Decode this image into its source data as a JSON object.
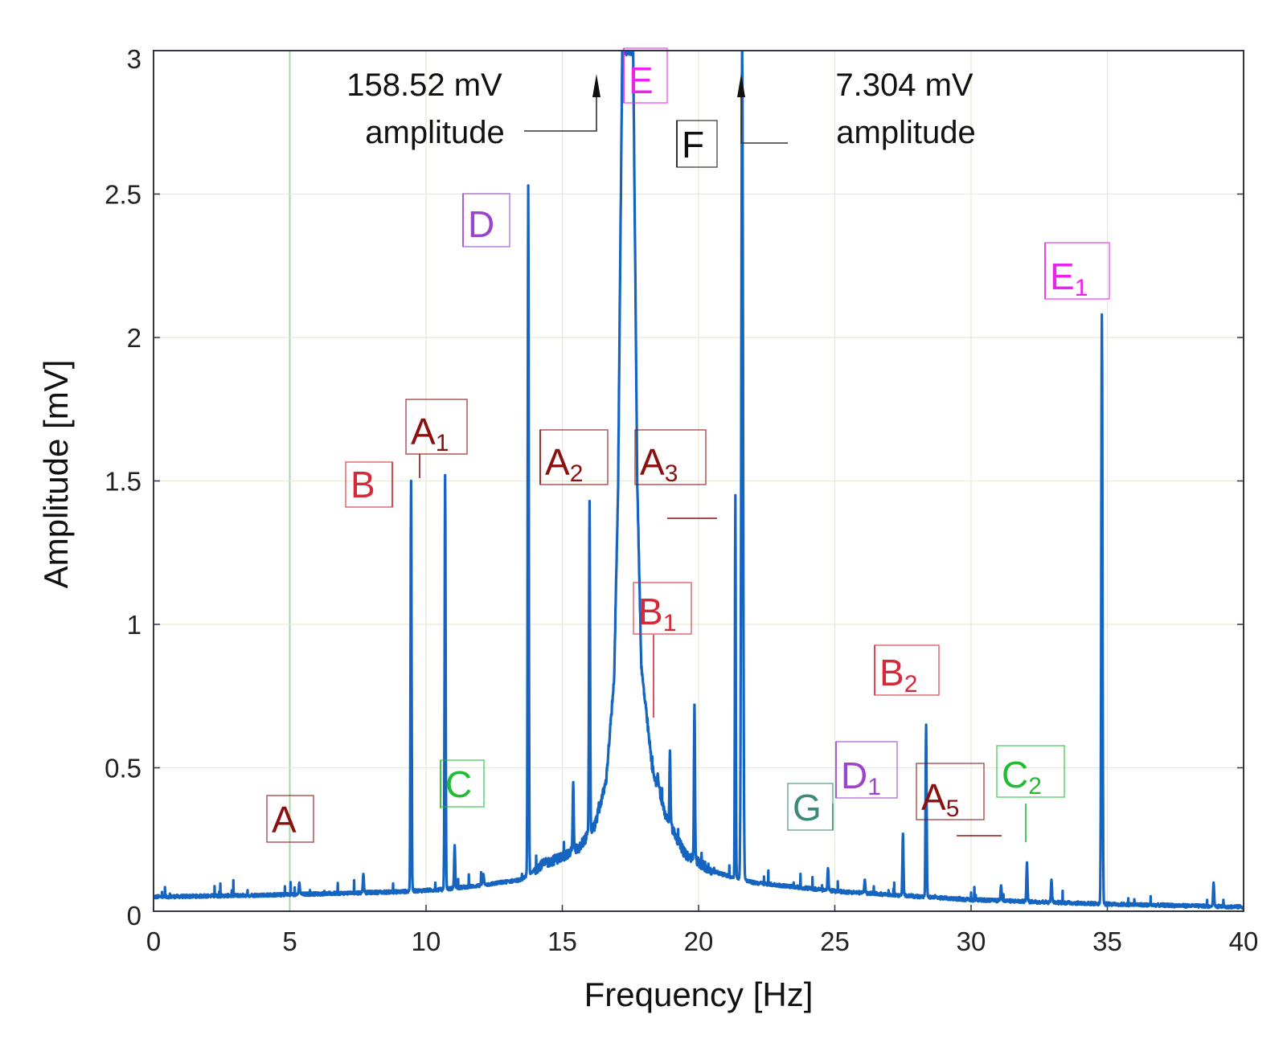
{
  "chart_data": {
    "type": "line",
    "xlabel": "Frequency [Hz]",
    "ylabel": "Amplitude [mV]",
    "xlim": [
      0,
      40
    ],
    "ylim": [
      0,
      3
    ],
    "grid": true,
    "x_ticks": [
      0,
      5,
      10,
      15,
      20,
      25,
      30,
      35,
      40
    ],
    "y_ticks": [
      0,
      0.5,
      1,
      1.5,
      2,
      2.5,
      3
    ],
    "y_tick_labels": [
      "0",
      "0.5",
      "1",
      "1.5",
      "2",
      "2.5",
      "3"
    ],
    "baseline": [
      {
        "x": 0,
        "y": 0.05
      },
      {
        "x": 5,
        "y": 0.058
      },
      {
        "x": 9,
        "y": 0.068
      },
      {
        "x": 10.5,
        "y": 0.075
      },
      {
        "x": 12,
        "y": 0.09
      },
      {
        "x": 13.5,
        "y": 0.11
      },
      {
        "x": 14.2,
        "y": 0.16
      },
      {
        "x": 15,
        "y": 0.19
      },
      {
        "x": 15.6,
        "y": 0.22
      },
      {
        "x": 16.2,
        "y": 0.3
      },
      {
        "x": 16.6,
        "y": 0.45
      },
      {
        "x": 16.9,
        "y": 0.8
      },
      {
        "x": 17.05,
        "y": 1.5
      },
      {
        "x": 17.2,
        "y": 3.0
      },
      {
        "x": 17.6,
        "y": 3.0
      },
      {
        "x": 17.75,
        "y": 1.5
      },
      {
        "x": 17.9,
        "y": 0.85
      },
      {
        "x": 18.3,
        "y": 0.5
      },
      {
        "x": 18.8,
        "y": 0.33
      },
      {
        "x": 19.5,
        "y": 0.2
      },
      {
        "x": 20.5,
        "y": 0.14
      },
      {
        "x": 21.2,
        "y": 0.12
      },
      {
        "x": 22,
        "y": 0.1
      },
      {
        "x": 25,
        "y": 0.07
      },
      {
        "x": 30,
        "y": 0.04
      },
      {
        "x": 35,
        "y": 0.025
      },
      {
        "x": 40,
        "y": 0.015
      }
    ],
    "peaks": [
      {
        "x": 5.35,
        "y": 0.1,
        "w": 0.06
      },
      {
        "x": 7.7,
        "y": 0.13,
        "w": 0.06
      },
      {
        "x": 9.45,
        "y": 1.5,
        "w": 0.06
      },
      {
        "x": 10.7,
        "y": 1.52,
        "w": 0.06
      },
      {
        "x": 11.05,
        "y": 0.23,
        "w": 0.06
      },
      {
        "x": 12.1,
        "y": 0.13,
        "w": 0.08
      },
      {
        "x": 13.75,
        "y": 2.53,
        "w": 0.06
      },
      {
        "x": 15.4,
        "y": 0.45,
        "w": 0.06
      },
      {
        "x": 16.0,
        "y": 1.43,
        "w": 0.06
      },
      {
        "x": 18.5,
        "y": 0.48,
        "w": 0.06
      },
      {
        "x": 18.95,
        "y": 0.56,
        "w": 0.06
      },
      {
        "x": 19.85,
        "y": 0.72,
        "w": 0.06
      },
      {
        "x": 21.35,
        "y": 1.45,
        "w": 0.05
      },
      {
        "x": 21.6,
        "y": 3.0,
        "w": 0.1
      },
      {
        "x": 24.75,
        "y": 0.15,
        "w": 0.06
      },
      {
        "x": 26.1,
        "y": 0.11,
        "w": 0.06
      },
      {
        "x": 27.5,
        "y": 0.27,
        "w": 0.06
      },
      {
        "x": 28.35,
        "y": 0.65,
        "w": 0.06
      },
      {
        "x": 31.1,
        "y": 0.09,
        "w": 0.06
      },
      {
        "x": 32.05,
        "y": 0.17,
        "w": 0.06
      },
      {
        "x": 32.95,
        "y": 0.11,
        "w": 0.06
      },
      {
        "x": 34.8,
        "y": 2.08,
        "w": 0.07
      },
      {
        "x": 38.9,
        "y": 0.1,
        "w": 0.06
      }
    ],
    "annotations": [
      {
        "id": "peak-e",
        "line1": "158.52 mV",
        "line2": "amplitude"
      },
      {
        "id": "peak-f",
        "line1": "7.304 mV",
        "line2": "amplitude"
      }
    ],
    "peak_labels": [
      {
        "id": "a",
        "letter": "A",
        "sub": "",
        "color": "#8b1111",
        "x": 5.35
      },
      {
        "id": "b",
        "letter": "B",
        "sub": "",
        "color": "#d62838",
        "x": 9.45
      },
      {
        "id": "a1",
        "letter": "A",
        "sub": "1",
        "color": "#8b1111",
        "x": 10.7
      },
      {
        "id": "c",
        "letter": "C",
        "sub": "",
        "color": "#22bb33",
        "x": 11.05
      },
      {
        "id": "d",
        "letter": "D",
        "sub": "",
        "color": "#9b44cc",
        "x": 13.75
      },
      {
        "id": "a2",
        "letter": "A",
        "sub": "2",
        "color": "#8b1111",
        "x": 16.0
      },
      {
        "id": "e",
        "letter": "E",
        "sub": "",
        "color": "#ee22ee",
        "x": 17.3
      },
      {
        "id": "a3",
        "letter": "A",
        "sub": "3",
        "color": "#8b1111",
        "x": 21.35
      },
      {
        "id": "f",
        "letter": "F",
        "sub": "",
        "color": "#111111",
        "x": 21.6
      },
      {
        "id": "b1",
        "letter": "B",
        "sub": "1",
        "color": "#d62838",
        "x": 18.95
      },
      {
        "id": "b2",
        "letter": "B",
        "sub": "2",
        "color": "#d62838",
        "x": 28.35
      },
      {
        "id": "g",
        "letter": "G",
        "sub": "",
        "color": "#3a8a7a",
        "x": 24.75
      },
      {
        "id": "d1",
        "letter": "D",
        "sub": "1",
        "color": "#9b44cc",
        "x": 27.5
      },
      {
        "id": "a5",
        "letter": "A",
        "sub": "5",
        "color": "#8b1111",
        "x": 32.05
      },
      {
        "id": "c2",
        "letter": "C",
        "sub": "2",
        "color": "#22bb33",
        "x": 32.95
      },
      {
        "id": "e1",
        "letter": "E",
        "sub": "1",
        "color": "#ee22ee",
        "x": 34.8
      }
    ],
    "colors": {
      "line": "#1565c0",
      "grid": "#e6ead8",
      "highlight_gridline": "#a8d4a8",
      "axis": "#333344"
    }
  }
}
